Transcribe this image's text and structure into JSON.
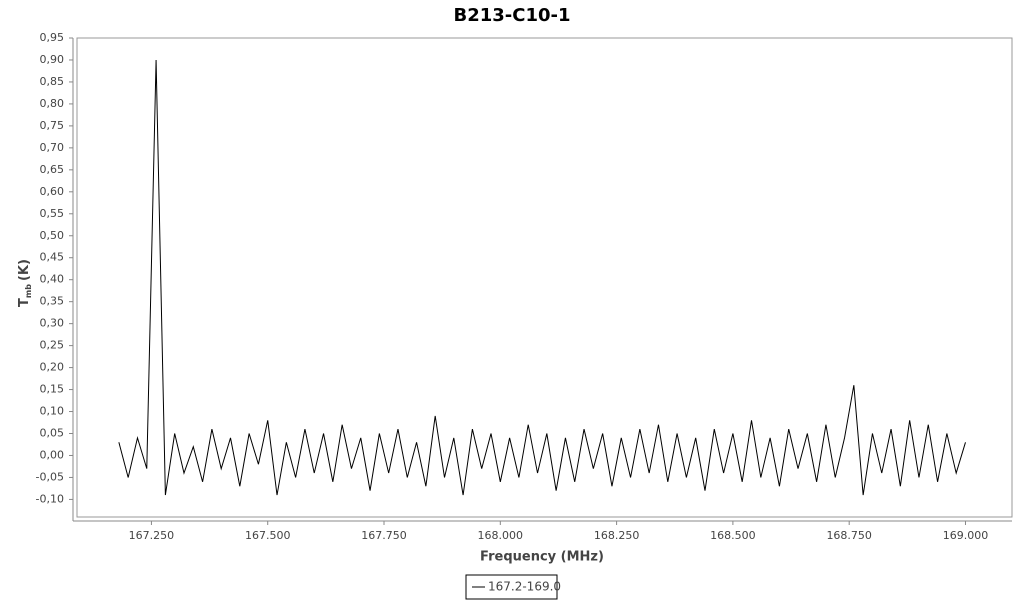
{
  "chart_data": {
    "type": "line",
    "title": "B213-C10-1",
    "x_label": "Frequency (MHz)",
    "y_label": {
      "main": "T",
      "sub": "mb",
      "unit": "(K)"
    },
    "x": [
      167.18,
      167.2,
      167.22,
      167.24,
      167.26,
      167.28,
      167.3,
      167.32,
      167.34,
      167.36,
      167.38,
      167.4,
      167.42,
      167.44,
      167.46,
      167.48,
      167.5,
      167.52,
      167.54,
      167.56,
      167.58,
      167.6,
      167.62,
      167.64,
      167.66,
      167.68,
      167.7,
      167.72,
      167.74,
      167.76,
      167.78,
      167.8,
      167.82,
      167.84,
      167.86,
      167.88,
      167.9,
      167.92,
      167.94,
      167.96,
      167.98,
      168,
      168.02,
      168.04,
      168.06,
      168.08,
      168.1,
      168.12,
      168.14,
      168.16,
      168.18,
      168.2,
      168.22,
      168.24,
      168.26,
      168.28,
      168.3,
      168.32,
      168.34,
      168.36,
      168.38,
      168.4,
      168.42,
      168.44,
      168.46,
      168.48,
      168.5,
      168.52,
      168.54,
      168.56,
      168.58,
      168.6,
      168.62,
      168.64,
      168.66,
      168.68,
      168.7,
      168.72,
      168.74,
      168.76,
      168.78,
      168.8,
      168.82,
      168.84,
      168.86,
      168.88,
      168.9,
      168.92,
      168.94,
      168.96,
      168.98,
      169
    ],
    "series": [
      {
        "name": "167.2-169.0",
        "color": "#000000",
        "values": [
          0.03,
          -0.05,
          0.04,
          -0.03,
          0.9,
          -0.09,
          0.05,
          -0.04,
          0.02,
          -0.06,
          0.06,
          -0.03,
          0.04,
          -0.07,
          0.05,
          -0.02,
          0.08,
          -0.09,
          0.03,
          -0.05,
          0.06,
          -0.04,
          0.05,
          -0.06,
          0.07,
          -0.03,
          0.04,
          -0.08,
          0.05,
          -0.04,
          0.06,
          -0.05,
          0.03,
          -0.07,
          0.09,
          -0.05,
          0.04,
          -0.09,
          0.06,
          -0.03,
          0.05,
          -0.06,
          0.04,
          -0.05,
          0.07,
          -0.04,
          0.05,
          -0.08,
          0.04,
          -0.06,
          0.06,
          -0.03,
          0.05,
          -0.07,
          0.04,
          -0.05,
          0.06,
          -0.04,
          0.07,
          -0.06,
          0.05,
          -0.05,
          0.04,
          -0.08,
          0.06,
          -0.04,
          0.05,
          -0.06,
          0.08,
          -0.05,
          0.04,
          -0.07,
          0.06,
          -0.03,
          0.05,
          -0.06,
          0.07,
          -0.05,
          0.04,
          0.16,
          -0.09,
          0.05,
          -0.04,
          0.06,
          -0.07,
          0.08,
          -0.05,
          0.07,
          -0.06,
          0.05,
          -0.04,
          0.03
        ]
      }
    ],
    "xlim": [
      167.09,
      169.1
    ],
    "ylim": [
      -0.14,
      0.95
    ],
    "xticks": [
      {
        "value": 167.25,
        "label": "167.250"
      },
      {
        "value": 167.5,
        "label": "167.500"
      },
      {
        "value": 167.75,
        "label": "167.750"
      },
      {
        "value": 168,
        "label": "168.000"
      },
      {
        "value": 168.25,
        "label": "168.250"
      },
      {
        "value": 168.5,
        "label": "168.500"
      },
      {
        "value": 168.75,
        "label": "168.750"
      },
      {
        "value": 169,
        "label": "169.000"
      }
    ],
    "yticks": [
      {
        "value": -0.1,
        "label": "-0,10"
      },
      {
        "value": -0.05,
        "label": "-0,05"
      },
      {
        "value": 0,
        "label": "0,00"
      },
      {
        "value": 0.05,
        "label": "0,05"
      },
      {
        "value": 0.1,
        "label": "0,10"
      },
      {
        "value": 0.15,
        "label": "0,15"
      },
      {
        "value": 0.2,
        "label": "0,20"
      },
      {
        "value": 0.25,
        "label": "0,25"
      },
      {
        "value": 0.3,
        "label": "0,30"
      },
      {
        "value": 0.35,
        "label": "0,35"
      },
      {
        "value": 0.4,
        "label": "0,40"
      },
      {
        "value": 0.45,
        "label": "0,45"
      },
      {
        "value": 0.5,
        "label": "0,50"
      },
      {
        "value": 0.55,
        "label": "0,55"
      },
      {
        "value": 0.6,
        "label": "0,60"
      },
      {
        "value": 0.65,
        "label": "0,65"
      },
      {
        "value": 0.7,
        "label": "0,70"
      },
      {
        "value": 0.75,
        "label": "0,75"
      },
      {
        "value": 0.8,
        "label": "0,80"
      },
      {
        "value": 0.85,
        "label": "0,85"
      },
      {
        "value": 0.9,
        "label": "0,90"
      },
      {
        "value": 0.95,
        "label": "0,95"
      }
    ],
    "grid": false
  }
}
